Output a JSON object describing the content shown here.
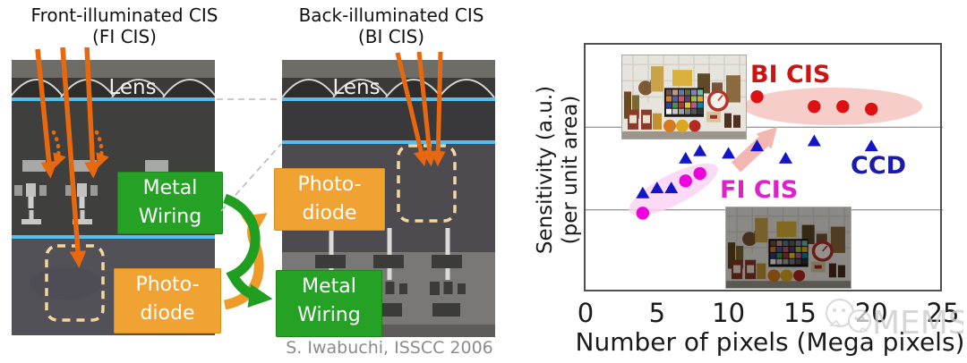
{
  "left_panel": {
    "fi_title_line1": "Front-illuminated CIS",
    "fi_title_line2": "(FI CIS)",
    "bi_title_line1": "Back-illuminated CIS",
    "bi_title_line2": "(BI CIS)",
    "lens_label": "Lens",
    "citation": "S. Iwabuchi, ISSCC 2006"
  },
  "labels": {
    "metal_line1": "Metal",
    "metal_line2": "Wiring",
    "photodiode_line1": "Photo-",
    "photodiode_line2": "diode"
  },
  "chart": {
    "watermark": "MEMS"
  },
  "colors": {
    "ray_orange": "#e8680f",
    "metal_green": "#25a125",
    "photodiode_orange": "#f0a232",
    "lens_line_blue": "#54bfee",
    "bi_cis_red": "#dd1111",
    "ccd_blue": "#1414c8",
    "fi_cis_magenta": "#ee00dd",
    "highlight_pink": "#f7cdc9",
    "highlight_magenta": "#fbd4f5"
  },
  "chart_data": {
    "type": "scatter",
    "xlabel": "Number of pixels (Mega pixels)",
    "ylabel": "Sensitivity (a.u.)",
    "ylabel2": "(per unit area)",
    "xlim": [
      0,
      25
    ],
    "ylim": [
      0,
      1
    ],
    "xticks": [
      0,
      5,
      10,
      15,
      20,
      25
    ],
    "grid": "two horizontal gridlines at thirds, no y ticks",
    "series": [
      {
        "name": "BI CIS",
        "marker": "circle",
        "color": "#dd1111",
        "points": [
          [
            12,
            0.79
          ],
          [
            16,
            0.75
          ],
          [
            18,
            0.75
          ],
          [
            20,
            0.74
          ]
        ]
      },
      {
        "name": "CCD",
        "marker": "triangle",
        "color": "#1414c8",
        "points": [
          [
            4,
            0.4
          ],
          [
            5,
            0.42
          ],
          [
            6,
            0.42
          ],
          [
            7,
            0.54
          ],
          [
            8,
            0.57
          ],
          [
            10,
            0.56
          ],
          [
            12,
            0.59
          ],
          [
            14,
            0.54
          ],
          [
            16,
            0.61
          ],
          [
            20,
            0.59
          ]
        ]
      },
      {
        "name": "FI CIS",
        "marker": "circle",
        "color": "#ee00dd",
        "points": [
          [
            4,
            0.32
          ],
          [
            7,
            0.45
          ],
          [
            8,
            0.48
          ]
        ]
      }
    ],
    "annotations": [
      "pink ellipse highlighting BI CIS points",
      "magenta ellipse highlighting FI CIS points",
      "pink arrow from FI CIS cluster toward BI CIS cluster",
      "bright sample photo near BI CIS points",
      "dark sample photo near FI CIS points"
    ]
  }
}
